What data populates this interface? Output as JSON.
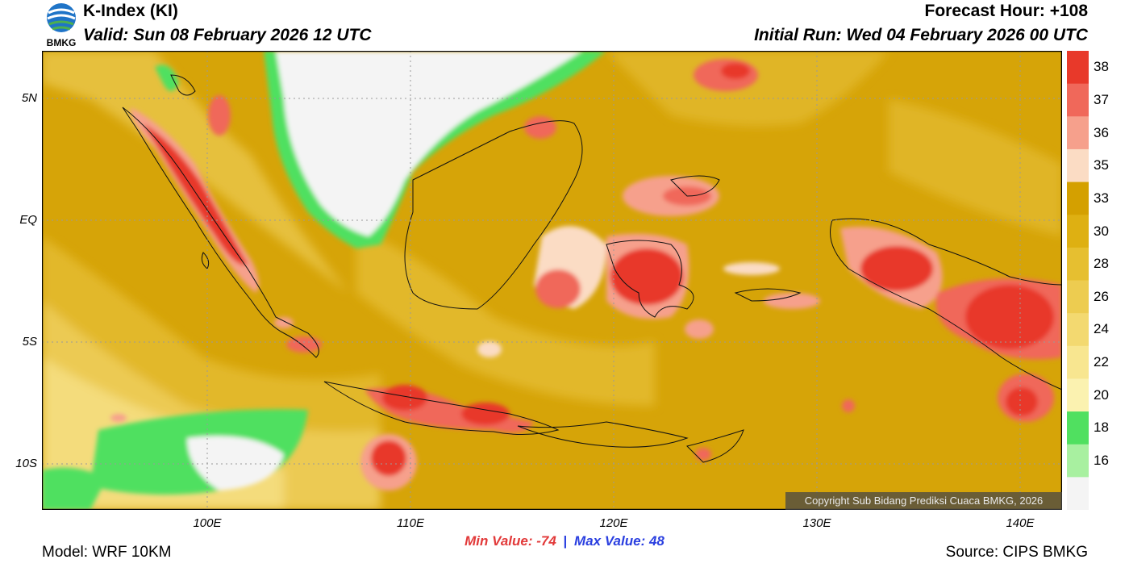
{
  "header": {
    "title": "K-Index (KI)",
    "valid": "Valid: Sun 08 February 2026 12 UTC",
    "forecast_hour": "Forecast Hour: +108",
    "initial_run": "Initial Run: Wed 04 February 2026 00 UTC",
    "logo_text": "BMKG"
  },
  "map": {
    "lat_labels": [
      "5N",
      "EQ",
      "5S",
      "10S"
    ],
    "lon_labels": [
      "100E",
      "110E",
      "120E",
      "130E",
      "140E"
    ],
    "copyright": "Copyright Sub Bidang Prediksi Cuaca BMKG, 2026"
  },
  "stats": {
    "min_label": "Min Value: -74",
    "separator": "|",
    "max_label": "Max Value:  48"
  },
  "footer": {
    "model": "Model: WRF 10KM",
    "source": "Source: CIPS BMKG"
  },
  "colorbar": {
    "labels": [
      "38",
      "37",
      "36",
      "35",
      "33",
      "30",
      "28",
      "26",
      "24",
      "22",
      "20",
      "18",
      "16"
    ],
    "colors": [
      "#e8392a",
      "#f0685a",
      "#f6a08c",
      "#fbdcc4",
      "#d4a000",
      "#deb012",
      "#e6bf30",
      "#edcc50",
      "#f3d970",
      "#f8e690",
      "#fbf2b0",
      "#50e060",
      "#a8f0a0",
      "#f4f4f4"
    ]
  }
}
